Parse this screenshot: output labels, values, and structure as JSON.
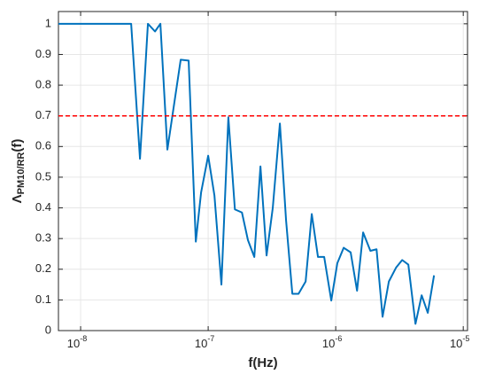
{
  "chart_data": {
    "type": "line",
    "xlabel": "f(Hz)",
    "ylabel": [
      "Λ",
      "PM10/RR",
      "(f)"
    ],
    "x": [
      6.7e-09,
      2.49e-08,
      2.92e-08,
      3.37e-08,
      3.83e-08,
      4.22e-08,
      4.79e-08,
      6.09e-08,
      7.03e-08,
      8e-08,
      8.8e-08,
      1e-07,
      1.12e-07,
      1.27e-07,
      1.44e-07,
      1.62e-07,
      1.84e-07,
      2.05e-07,
      2.3e-07,
      2.57e-07,
      2.87e-07,
      3.21e-07,
      3.65e-07,
      4.08e-07,
      4.57e-07,
      5.11e-07,
      5.81e-07,
      6.49e-07,
      7.26e-07,
      8.12e-07,
      9.23e-07,
      1.03e-06,
      1.155e-06,
      1.31e-06,
      1.47e-06,
      1.64e-06,
      1.87e-06,
      2.09e-06,
      2.33e-06,
      2.61e-06,
      2.97e-06,
      3.32e-06,
      3.71e-06,
      4.22e-06,
      4.72e-06,
      5.27e-06,
      5.9e-06
    ],
    "values": [
      1,
      1,
      0.56,
      1,
      0.975,
      1,
      0.59,
      0.883,
      0.88,
      0.29,
      0.45,
      0.57,
      0.44,
      0.15,
      0.695,
      0.395,
      0.385,
      0.295,
      0.24,
      0.535,
      0.245,
      0.4,
      0.675,
      0.36,
      0.12,
      0.12,
      0.16,
      0.38,
      0.24,
      0.24,
      0.098,
      0.22,
      0.27,
      0.255,
      0.13,
      0.32,
      0.26,
      0.265,
      0.045,
      0.16,
      0.205,
      0.23,
      0.215,
      0.022,
      0.115,
      0.058,
      0.18
    ],
    "color": "#0072bd",
    "xscale": "log",
    "xlim": [
      6.7e-09,
      1.08e-05
    ],
    "xticks": [
      {
        "value": 1e-08,
        "label": "10",
        "exponent": "-8"
      },
      {
        "value": 1e-07,
        "label": "10",
        "exponent": "-7"
      },
      {
        "value": 1e-06,
        "label": "10",
        "exponent": "-6"
      },
      {
        "value": 1e-05,
        "label": "10",
        "exponent": "-5"
      }
    ],
    "ylim": [
      0,
      1.04
    ],
    "yticks": [
      0,
      0.1,
      0.2,
      0.3,
      0.4,
      0.5,
      0.6,
      0.7,
      0.8,
      0.9,
      1
    ],
    "grid": true,
    "hline": {
      "value": 0.7,
      "color": "#ff0000"
    }
  }
}
